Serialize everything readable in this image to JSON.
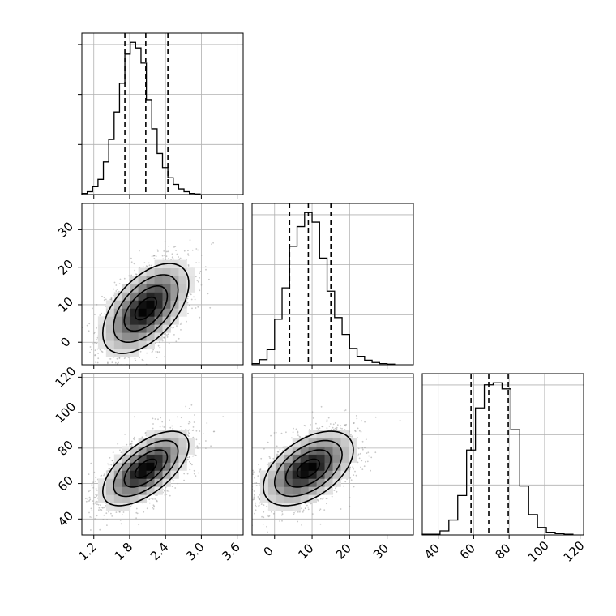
{
  "chart_data": {
    "type": "corner",
    "colors": {
      "line": "#000000",
      "grid": "#b0b0b0",
      "scatter_point": "#9a9a9a",
      "density_scale": [
        "#ffffff",
        "#000000"
      ]
    },
    "params": [
      {
        "id": "p0",
        "range": [
          1.0,
          3.7
        ],
        "ticks": [
          1.2,
          1.8,
          2.4,
          3.0,
          3.6
        ],
        "tick_labels": [
          "1.2",
          "1.8",
          "2.4",
          "3.0",
          "3.6"
        ]
      },
      {
        "id": "p1",
        "range": [
          -6,
          37
        ],
        "ticks": [
          0,
          10,
          20,
          30
        ],
        "tick_labels": [
          "0",
          "10",
          "20",
          "30"
        ]
      },
      {
        "id": "p2",
        "range": [
          31,
          122
        ],
        "ticks": [
          40,
          60,
          80,
          100,
          120
        ],
        "tick_labels": [
          "40",
          "60",
          "80",
          "100",
          "120"
        ]
      }
    ],
    "diagonal": [
      {
        "param": "p0",
        "quantiles": [
          1.72,
          2.07,
          2.44
        ],
        "bin_start": 1.0,
        "bin_width": 0.09,
        "counts": [
          2,
          5,
          14,
          27,
          58,
          98,
          147,
          198,
          250,
          271,
          261,
          234,
          169,
          117,
          73,
          48,
          30,
          18,
          10,
          5,
          2,
          1
        ]
      },
      {
        "param": "p1",
        "quantiles": [
          4.0,
          9.0,
          15.0
        ],
        "bin_start": -6,
        "bin_width": 2.0,
        "counts": [
          2,
          9,
          27,
          81,
          137,
          211,
          246,
          271,
          254,
          190,
          131,
          84,
          54,
          29,
          15,
          8,
          4,
          2,
          1
        ]
      },
      {
        "param": "p2",
        "quantiles": [
          58.5,
          68.5,
          79.5
        ],
        "bin_start": 31,
        "bin_width": 5.0,
        "counts": [
          1,
          1,
          6,
          22,
          58,
          125,
          187,
          221,
          224,
          215,
          155,
          72,
          30,
          11,
          4,
          2,
          1
        ]
      }
    ],
    "pairs": [
      {
        "x": "p0",
        "y": "p1",
        "mean": [
          2.07,
          9.0
        ],
        "sd": [
          0.36,
          6.0
        ],
        "corr": 0.55
      },
      {
        "x": "p0",
        "y": "p2",
        "mean": [
          2.07,
          68.5
        ],
        "sd": [
          0.36,
          10.5
        ],
        "corr": 0.62
      },
      {
        "x": "p1",
        "y": "p2",
        "mean": [
          9.0,
          68.5
        ],
        "sd": [
          6.0,
          10.5
        ],
        "corr": 0.5
      }
    ],
    "contour_levels_sigma": [
      0.5,
      1.0,
      1.5,
      2.0
    ],
    "grid": true,
    "legend": "none"
  }
}
